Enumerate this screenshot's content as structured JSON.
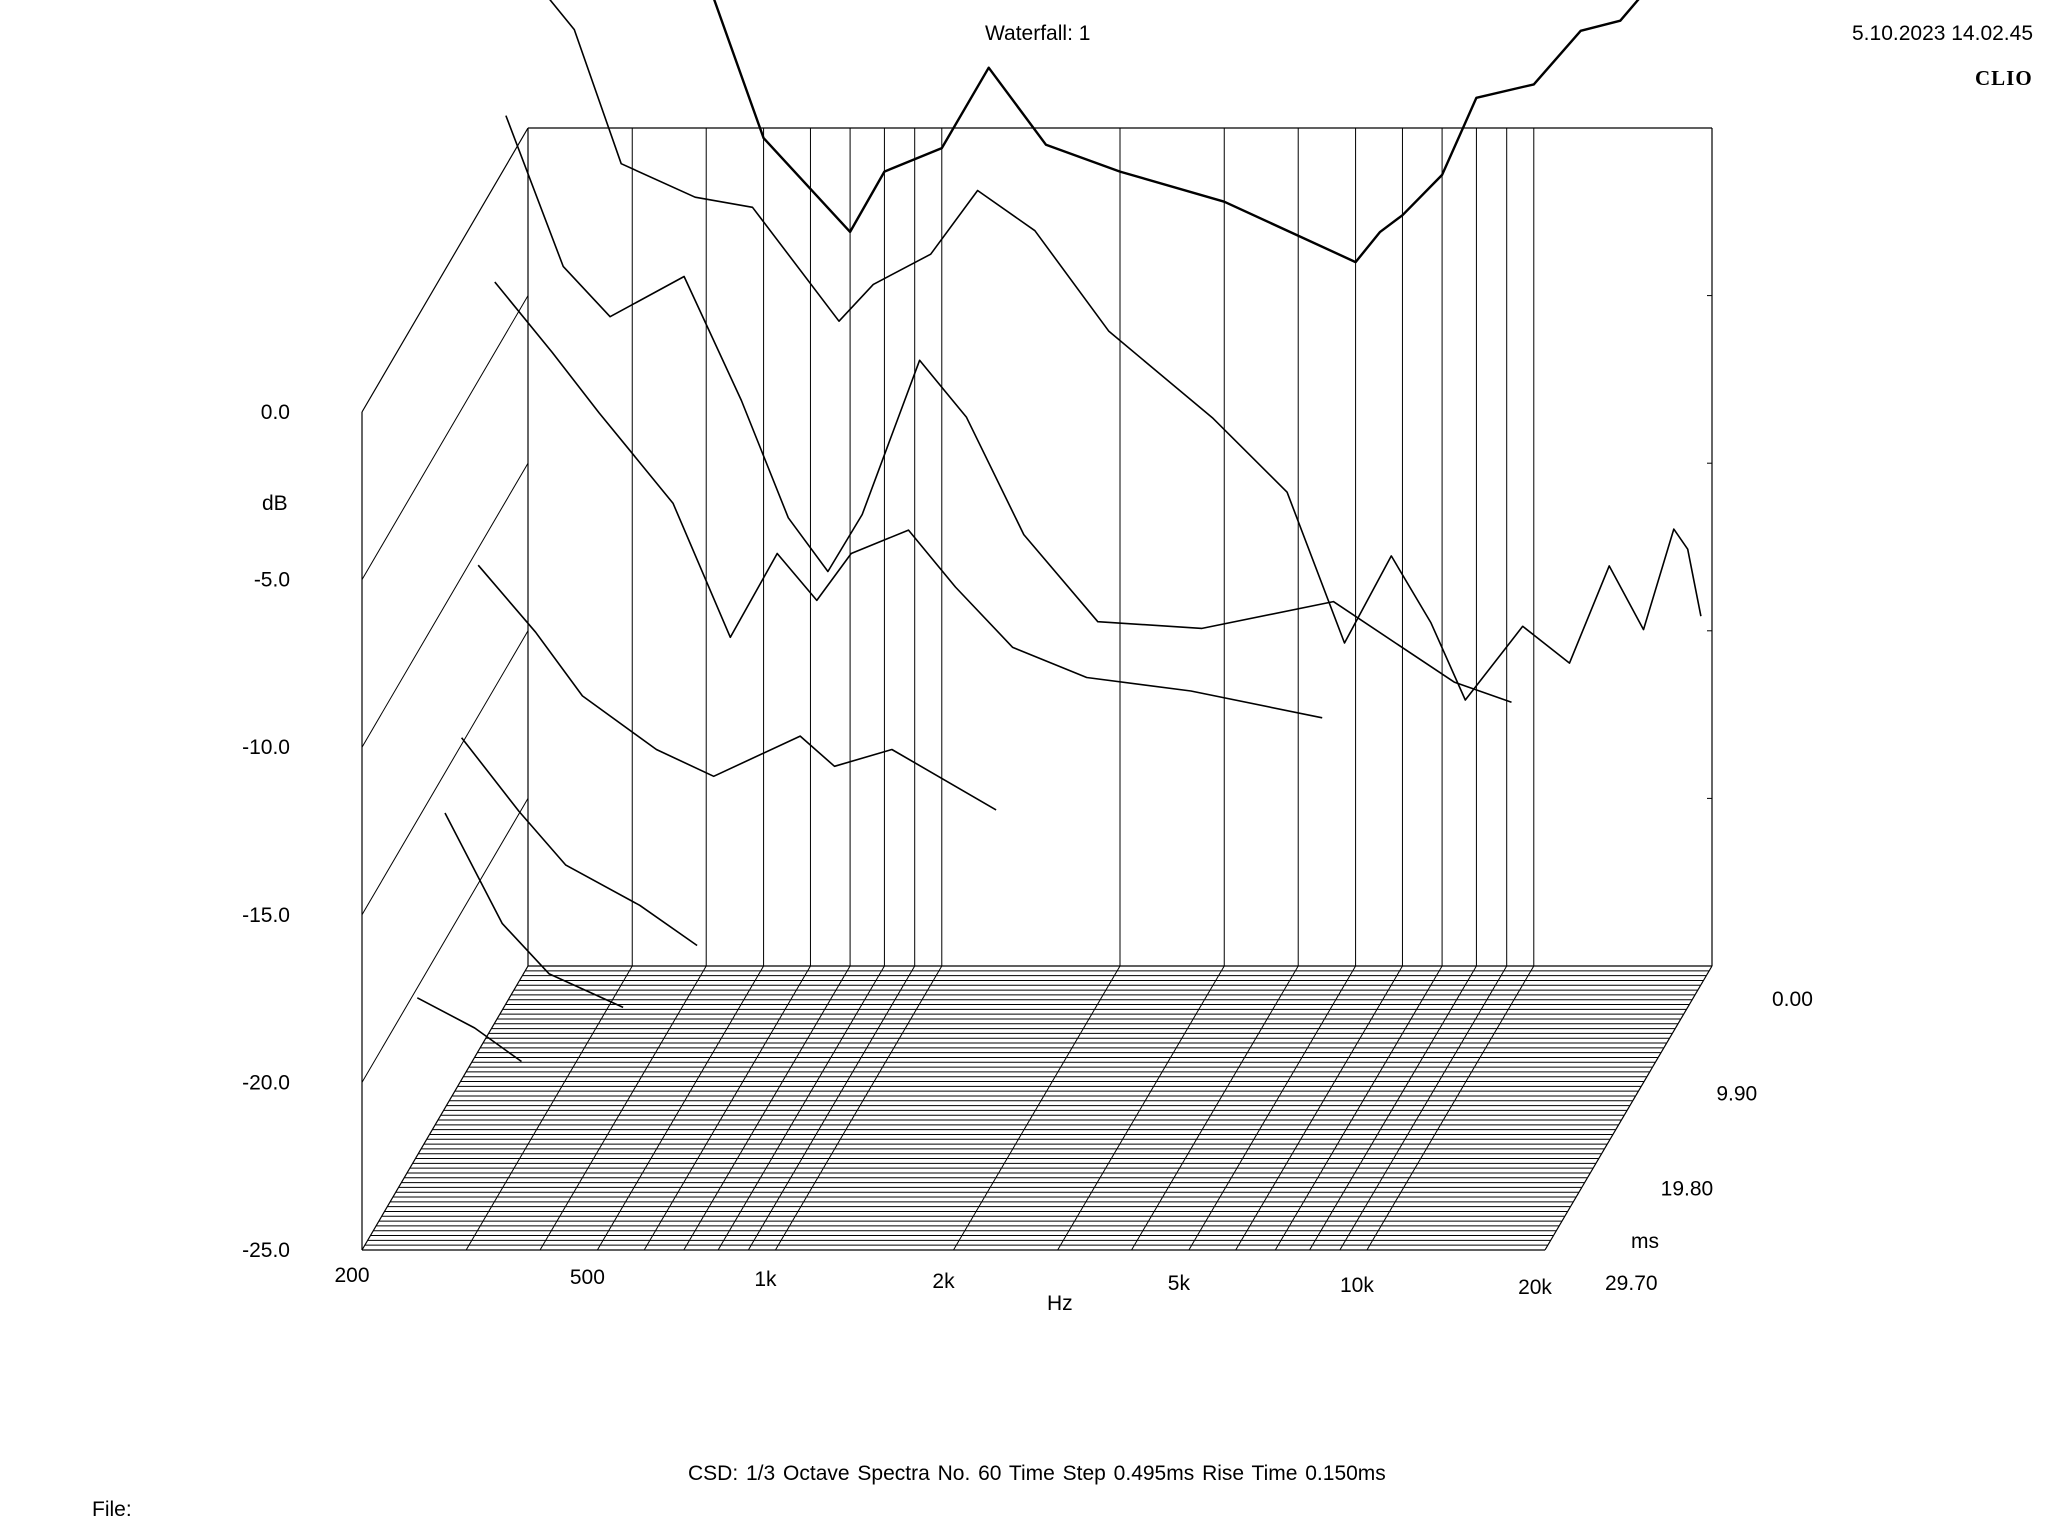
{
  "header": {
    "title": "Waterfall: 1",
    "timestamp": "5.10.2023 14.02.45",
    "brand": "CLIO"
  },
  "footer": {
    "text": "CSD:   1/3 Octave   Spectra No. 60   Time Step 0.495ms   Rise Time 0.150ms",
    "file_label": "File:"
  },
  "chart_data": {
    "type": "waterfall",
    "title": "Waterfall: 1",
    "xlabel": "Hz",
    "ylabel": "dB",
    "zlabel": "ms",
    "x_scale": "log",
    "xlim": [
      200,
      20000
    ],
    "ylim": [
      -25,
      0
    ],
    "zlim": [
      0,
      29.7
    ],
    "x_ticks": [
      {
        "value": 200,
        "label": "200"
      },
      {
        "value": 500,
        "label": "500"
      },
      {
        "value": 1000,
        "label": "1k"
      },
      {
        "value": 2000,
        "label": "2k"
      },
      {
        "value": 5000,
        "label": "5k"
      },
      {
        "value": 10000,
        "label": "10k"
      },
      {
        "value": 20000,
        "label": "20k"
      }
    ],
    "y_ticks": [
      {
        "value": 0,
        "label": "0.0"
      },
      {
        "value": -5,
        "label": "-5.0"
      },
      {
        "value": -10,
        "label": "-10.0"
      },
      {
        "value": -15,
        "label": "-15.0"
      },
      {
        "value": -20,
        "label": "-20.0"
      },
      {
        "value": -25,
        "label": "-25.0"
      }
    ],
    "z_ticks": [
      {
        "value": 0,
        "label": "0.00"
      },
      {
        "value": 9.9,
        "label": "9.90"
      },
      {
        "value": 19.8,
        "label": "19.80"
      },
      {
        "value": 29.7,
        "label": "29.70"
      }
    ],
    "spectra_count": 60,
    "time_step_ms": 0.495,
    "rise_time_ms": 0.15,
    "smoothing": "1/3 Octave",
    "series": [
      {
        "t": 0.0,
        "x": [
          200,
          250,
          300,
          400,
          500,
          700,
          800,
          1000,
          1200,
          1500,
          2000,
          3000,
          5000,
          5500,
          6000,
          7000,
          8000,
          10000,
          12000,
          14000,
          16000,
          18000,
          19000,
          20000
        ],
        "y": [
          6.2,
          5.7,
          4.6,
          4.5,
          -0.3,
          -3.1,
          -1.3,
          -0.6,
          1.8,
          -0.5,
          -1.3,
          -2.2,
          -4.0,
          -3.1,
          -2.6,
          -1.4,
          0.9,
          1.3,
          2.9,
          3.2,
          4.4,
          7.3,
          7.6,
          6.6
        ]
      },
      {
        "t": 1.98,
        "x": [
          200,
          250,
          300,
          400,
          500,
          700,
          800,
          1000,
          1200,
          1500,
          2000,
          3000,
          4000,
          5000,
          6000,
          7000,
          8000,
          10000,
          12000,
          14000,
          16000,
          18000,
          19000,
          20000
        ],
        "y": [
          5.6,
          3.5,
          -0.5,
          -1.5,
          -1.8,
          -5.2,
          -4.1,
          -3.2,
          -1.3,
          -2.5,
          -5.5,
          -8.1,
          -10.3,
          -14.8,
          -12.2,
          -14.2,
          -16.5,
          -14.3,
          -15.4,
          -12.5,
          -14.4,
          -11.4,
          -12.0,
          -14.0
        ]
      },
      {
        "t": 3.96,
        "x": [
          200,
          250,
          300,
          400,
          500,
          600,
          700,
          800,
          1000,
          1200,
          1500,
          2000,
          3000,
          5000,
          8000,
          10000
        ],
        "y": [
          1.5,
          -3.0,
          -4.5,
          -3.3,
          -7.0,
          -10.5,
          -12.1,
          -10.4,
          -5.8,
          -7.5,
          -11.0,
          -13.6,
          -13.8,
          -13.0,
          -15.4,
          -16.0
        ]
      },
      {
        "t": 5.94,
        "x": [
          200,
          250,
          300,
          400,
          500,
          600,
          700,
          800,
          1000,
          1200,
          1500,
          2000,
          3000,
          5000
        ],
        "y": [
          -2.9,
          -5.0,
          -6.8,
          -9.5,
          -13.5,
          -11.0,
          -12.4,
          -11.0,
          -10.3,
          -12.0,
          -13.8,
          -14.7,
          -15.1,
          -15.9
        ]
      },
      {
        "t": 8.91,
        "x": [
          200,
          250,
          300,
          400,
          500,
          700,
          800,
          1000,
          1500
        ],
        "y": [
          -10.5,
          -12.5,
          -14.4,
          -16.0,
          -16.8,
          -15.6,
          -16.5,
          -16.0,
          -17.8
        ]
      },
      {
        "t": 11.88,
        "x": [
          200,
          250,
          300,
          400,
          500
        ],
        "y": [
          -14.8,
          -17.0,
          -18.6,
          -19.8,
          -21.0
        ]
      },
      {
        "t": 14.85,
        "x": [
          200,
          250,
          300,
          400
        ],
        "y": [
          -16.2,
          -19.5,
          -21.0,
          -22.0
        ]
      },
      {
        "t": 19.8,
        "x": [
          200,
          250,
          300
        ],
        "y": [
          -20.3,
          -21.2,
          -22.2
        ]
      }
    ]
  }
}
